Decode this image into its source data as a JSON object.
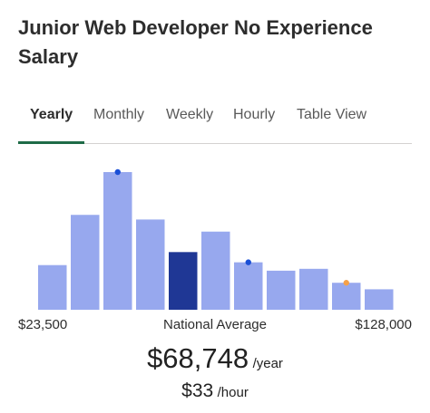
{
  "title": "Junior Web Developer No Experience Salary",
  "tabs": [
    "Yearly",
    "Monthly",
    "Weekly",
    "Hourly",
    "Table View"
  ],
  "active_tab": 0,
  "chart_data": {
    "type": "bar",
    "values": [
      48,
      102,
      148,
      97,
      62,
      84,
      51,
      42,
      44,
      29,
      22
    ],
    "color": "#97a8ee",
    "highlight": 4,
    "highlight_color": "#1f3795",
    "markers": [
      {
        "index": 2,
        "color": "#1a4fd6"
      },
      {
        "index": 6,
        "color": "#1a4fd6"
      },
      {
        "index": 9,
        "color": "#f5a14a"
      }
    ]
  },
  "range_labels": {
    "min": "$23,500",
    "center": "National Average",
    "max": "$128,000"
  },
  "salary": {
    "yearly": "$68,748",
    "yearly_unit": "/year",
    "hourly": "$33",
    "hourly_unit": "/hour"
  }
}
